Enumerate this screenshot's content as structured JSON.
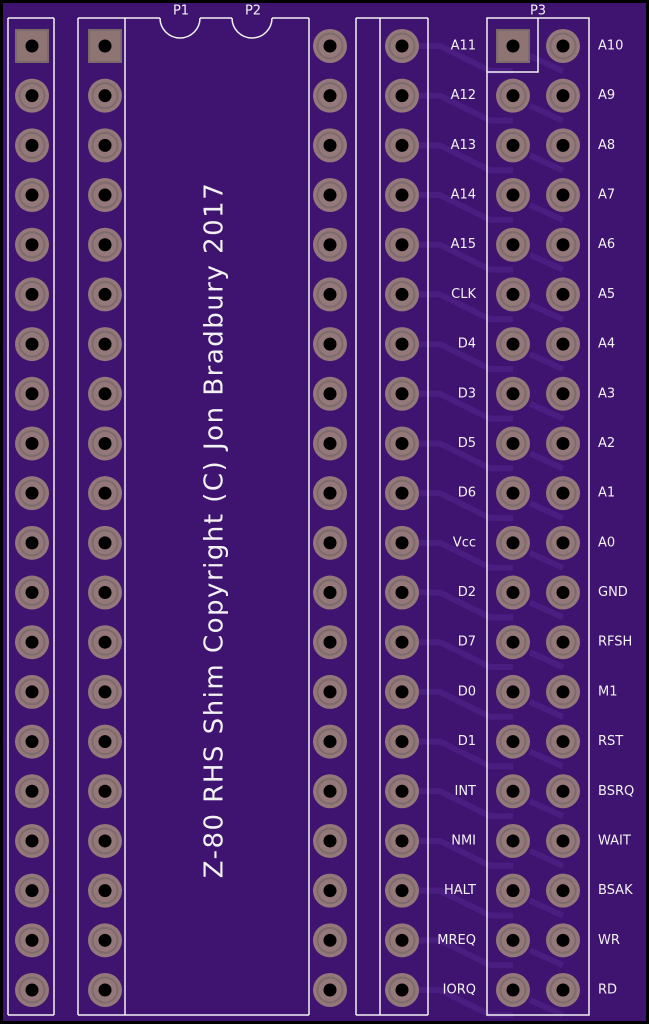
{
  "silkscreen": {
    "p1": "P1",
    "p2": "P2",
    "p3": "P3",
    "copyright": "Z-80 RHS Shim Copyright (C) Jon Bradbury 2017"
  },
  "pin_labels": {
    "left": [
      "A11",
      "A12",
      "A13",
      "A14",
      "A15",
      "CLK",
      "D4",
      "D3",
      "D5",
      "D6",
      "Vcc",
      "D2",
      "D7",
      "D0",
      "D1",
      "INT",
      "NMI",
      "HALT",
      "MREQ",
      "IORQ"
    ],
    "right": [
      "A10",
      "A9",
      "A8",
      "A7",
      "A6",
      "A5",
      "A4",
      "A3",
      "A2",
      "A1",
      "A0",
      "GND",
      "RFSH",
      "M1",
      "RST",
      "BSRQ",
      "WAIT",
      "BSAK",
      "WR",
      "RD"
    ]
  }
}
